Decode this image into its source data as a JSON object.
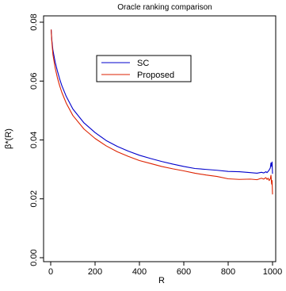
{
  "chart_data": {
    "type": "line",
    "title": "Oracle ranking comparison",
    "xlabel": "R",
    "ylabel": "β*(R)",
    "xlim": [
      0,
      1000
    ],
    "ylim": [
      0,
      0.08
    ],
    "x_ticks": [
      0,
      200,
      400,
      600,
      800,
      1000
    ],
    "y_ticks": [
      0.0,
      0.02,
      0.04,
      0.06,
      0.08
    ],
    "x_tick_labels": [
      "0",
      "200",
      "400",
      "600",
      "800",
      "1000"
    ],
    "y_tick_labels": [
      "0.00",
      "0.02",
      "0.04",
      "0.06",
      "0.08"
    ],
    "grid": false,
    "legend_position": "top-center",
    "series": [
      {
        "name": "SC",
        "color": "#0000cc",
        "x": [
          2,
          5,
          10,
          20,
          30,
          40,
          50,
          70,
          100,
          150,
          200,
          250,
          300,
          350,
          400,
          450,
          500,
          550,
          600,
          650,
          700,
          750,
          800,
          850,
          900,
          930,
          950,
          960,
          970,
          975,
          980,
          985,
          990,
          993,
          996,
          998,
          1000
        ],
        "y": [
          0.0775,
          0.074,
          0.0705,
          0.0665,
          0.0635,
          0.0608,
          0.0585,
          0.0548,
          0.0505,
          0.0458,
          0.0425,
          0.0398,
          0.0378,
          0.0362,
          0.0348,
          0.0337,
          0.0327,
          0.0318,
          0.031,
          0.0303,
          0.03,
          0.0297,
          0.0293,
          0.0292,
          0.0289,
          0.0287,
          0.029,
          0.0288,
          0.0292,
          0.0289,
          0.0293,
          0.0298,
          0.0305,
          0.0322,
          0.031,
          0.0325,
          0.0285
        ]
      },
      {
        "name": "Proposed",
        "color": "#dd2200",
        "x": [
          2,
          5,
          10,
          20,
          30,
          40,
          50,
          70,
          100,
          150,
          200,
          250,
          300,
          350,
          400,
          450,
          500,
          550,
          600,
          650,
          700,
          750,
          800,
          850,
          900,
          930,
          950,
          960,
          970,
          975,
          980,
          985,
          990,
          993,
          996,
          998,
          1000
        ],
        "y": [
          0.0775,
          0.0735,
          0.069,
          0.0645,
          0.0612,
          0.0585,
          0.0562,
          0.0525,
          0.0483,
          0.0437,
          0.0405,
          0.038,
          0.036,
          0.0344,
          0.033,
          0.032,
          0.031,
          0.0302,
          0.0295,
          0.0287,
          0.0281,
          0.0276,
          0.0268,
          0.0266,
          0.0267,
          0.0265,
          0.027,
          0.0267,
          0.0272,
          0.0266,
          0.027,
          0.0262,
          0.0268,
          0.028,
          0.025,
          0.0262,
          0.0215
        ]
      }
    ]
  }
}
